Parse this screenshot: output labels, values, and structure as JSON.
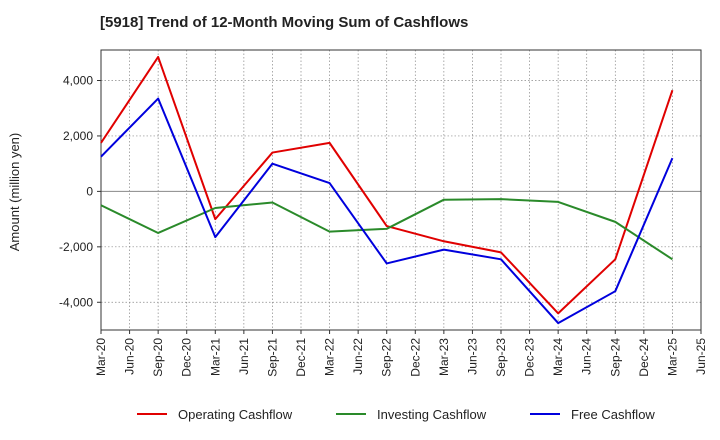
{
  "chart_data": {
    "type": "line",
    "title": "[5918]  Trend of 12-Month Moving Sum of Cashflows",
    "ylabel": "Amount (million yen)",
    "xlabel": "",
    "x_ticks": [
      "Mar-20",
      "Jun-20",
      "Sep-20",
      "Dec-20",
      "Mar-21",
      "Jun-21",
      "Sep-21",
      "Dec-21",
      "Mar-22",
      "Jun-22",
      "Sep-22",
      "Dec-22",
      "Mar-23",
      "Jun-23",
      "Sep-23",
      "Dec-23",
      "Mar-24",
      "Jun-24",
      "Sep-24",
      "Dec-24",
      "Mar-25",
      "Jun-25"
    ],
    "y_ticks": [
      -4000,
      -2000,
      0,
      2000,
      4000
    ],
    "y_tick_labels": [
      "-4,000",
      "-2,000",
      "0",
      "2,000",
      "4,000"
    ],
    "ylim": [
      -5000,
      5100
    ],
    "grid": true,
    "legend_position": "bottom",
    "series": [
      {
        "name": "Operating Cashflow",
        "color": "#e00000",
        "x": [
          "Mar-20",
          "Sep-20",
          "Mar-21",
          "Sep-21",
          "Mar-22",
          "Sep-22",
          "Mar-23",
          "Sep-23",
          "Mar-24",
          "Sep-24",
          "Mar-25"
        ],
        "values": [
          1750,
          4850,
          -1000,
          1400,
          1750,
          -1250,
          -1800,
          -2200,
          -4400,
          -2450,
          3650
        ]
      },
      {
        "name": "Investing Cashflow",
        "color": "#2a8a2a",
        "x": [
          "Mar-20",
          "Sep-20",
          "Mar-21",
          "Sep-21",
          "Mar-22",
          "Sep-22",
          "Mar-23",
          "Sep-23",
          "Mar-24",
          "Sep-24",
          "Mar-25"
        ],
        "values": [
          -500,
          -1500,
          -600,
          -400,
          -1450,
          -1350,
          -300,
          -280,
          -380,
          -1100,
          -2450
        ]
      },
      {
        "name": "Free Cashflow",
        "color": "#0000dd",
        "x": [
          "Mar-20",
          "Sep-20",
          "Mar-21",
          "Sep-21",
          "Mar-22",
          "Sep-22",
          "Mar-23",
          "Sep-23",
          "Mar-24",
          "Sep-24",
          "Mar-25"
        ],
        "values": [
          1250,
          3350,
          -1650,
          1000,
          300,
          -2600,
          -2100,
          -2450,
          -4750,
          -3600,
          1200
        ]
      }
    ]
  }
}
